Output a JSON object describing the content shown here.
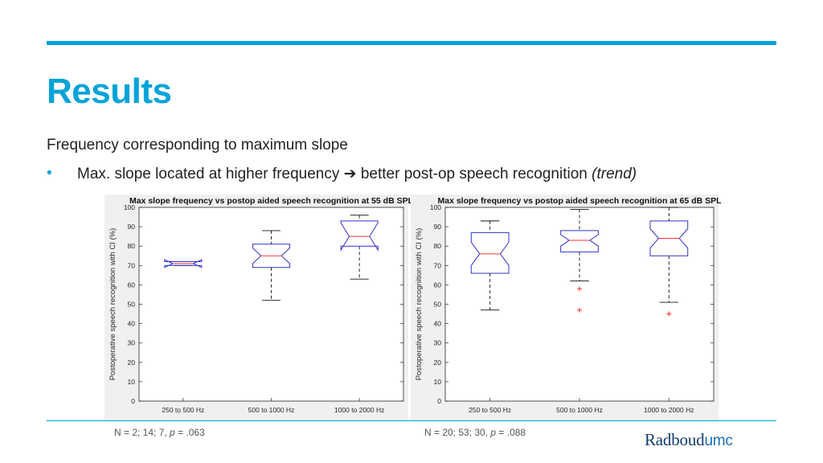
{
  "slide": {
    "title": "Results",
    "subtitle": "Frequency corresponding to maximum slope",
    "bullet_text": "Max. slope located at higher frequency",
    "bullet_arrow": "➔",
    "bullet_tail": "better post-op speech recognition",
    "bullet_trend": "(trend)",
    "logo_main": "Radboud",
    "logo_suffix": "umc",
    "accent_color": "#00a3d9"
  },
  "notes": [
    {
      "prefix": "N = 2; 14; 7, ",
      "p": "p",
      "suffix": " = .063"
    },
    {
      "prefix": "N = 20; 53; 30, ",
      "p": "p",
      "suffix": " = .088"
    }
  ],
  "chart_data": [
    {
      "type": "boxplot",
      "title": "Max slope frequency vs postop aided speech recognition at 55 dB SPL",
      "ylabel": "Postoperative speech recognition with CI (%)",
      "ylim": [
        0,
        100
      ],
      "yticks": [
        0,
        10,
        20,
        30,
        40,
        50,
        60,
        70,
        80,
        90,
        100
      ],
      "categories": [
        "250 to 500 Hz",
        "500 to 1000 Hz",
        "1000 to 2000 Hz"
      ],
      "notched": true,
      "box_color": "#3333cc",
      "median_color": "#ff3030",
      "boxes": [
        {
          "min": 70,
          "q1": 70,
          "median": 71,
          "q3": 72,
          "max": 72,
          "notch_low": 69,
          "notch_high": 73,
          "outliers": []
        },
        {
          "min": 52,
          "q1": 69,
          "median": 75,
          "q3": 81,
          "max": 88,
          "notch_low": 71,
          "notch_high": 79,
          "outliers": []
        },
        {
          "min": 63,
          "q1": 80,
          "median": 85,
          "q3": 93,
          "max": 96,
          "notch_low": 78,
          "notch_high": 92,
          "outliers": []
        }
      ]
    },
    {
      "type": "boxplot",
      "title": "Max slope frequency vs postop aided speech recognition at 65 dB SPL",
      "ylabel": "Postoperative speech recognition with CI (%)",
      "ylim": [
        0,
        100
      ],
      "yticks": [
        0,
        10,
        20,
        30,
        40,
        50,
        60,
        70,
        80,
        90,
        100
      ],
      "categories": [
        "250 to 500 Hz",
        "500 to 1000 Hz",
        "1000 to 2000 Hz"
      ],
      "notched": true,
      "box_color": "#3333cc",
      "median_color": "#ff3030",
      "boxes": [
        {
          "min": 47,
          "q1": 66,
          "median": 76,
          "q3": 87,
          "max": 93,
          "notch_low": 70,
          "notch_high": 82,
          "outliers": []
        },
        {
          "min": 62,
          "q1": 77,
          "median": 83,
          "q3": 88,
          "max": 99,
          "notch_low": 80,
          "notch_high": 86,
          "outliers": [
            58,
            47
          ]
        },
        {
          "min": 51,
          "q1": 75,
          "median": 84,
          "q3": 93,
          "max": 100,
          "notch_low": 79,
          "notch_high": 89,
          "outliers": [
            45
          ]
        }
      ]
    }
  ]
}
